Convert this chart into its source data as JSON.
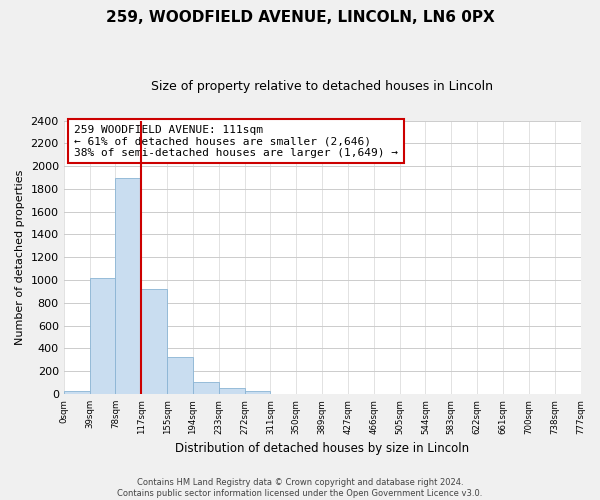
{
  "title": "259, WOODFIELD AVENUE, LINCOLN, LN6 0PX",
  "subtitle": "Size of property relative to detached houses in Lincoln",
  "xlabel": "Distribution of detached houses by size in Lincoln",
  "ylabel": "Number of detached properties",
  "bin_labels": [
    "0sqm",
    "39sqm",
    "78sqm",
    "117sqm",
    "155sqm",
    "194sqm",
    "233sqm",
    "272sqm",
    "311sqm",
    "350sqm",
    "389sqm",
    "427sqm",
    "466sqm",
    "505sqm",
    "544sqm",
    "583sqm",
    "622sqm",
    "661sqm",
    "700sqm",
    "738sqm",
    "777sqm"
  ],
  "bar_heights": [
    25,
    1020,
    1900,
    920,
    320,
    105,
    50,
    30,
    0,
    0,
    0,
    0,
    0,
    0,
    0,
    0,
    0,
    0,
    0,
    0
  ],
  "bar_color": "#c9ddf0",
  "bar_edge_color": "#8ab4d4",
  "vline_x": 3,
  "vline_color": "#cc0000",
  "annotation_line1": "259 WOODFIELD AVENUE: 111sqm",
  "annotation_line2": "← 61% of detached houses are smaller (2,646)",
  "annotation_line3": "38% of semi-detached houses are larger (1,649) →",
  "annotation_box_color": "#ffffff",
  "annotation_box_edge": "#cc0000",
  "ylim": [
    0,
    2400
  ],
  "yticks": [
    0,
    200,
    400,
    600,
    800,
    1000,
    1200,
    1400,
    1600,
    1800,
    2000,
    2200,
    2400
  ],
  "footer_line1": "Contains HM Land Registry data © Crown copyright and database right 2024.",
  "footer_line2": "Contains public sector information licensed under the Open Government Licence v3.0.",
  "bg_color": "#f0f0f0",
  "plot_bg_color": "#ffffff",
  "grid_color": "#cccccc"
}
